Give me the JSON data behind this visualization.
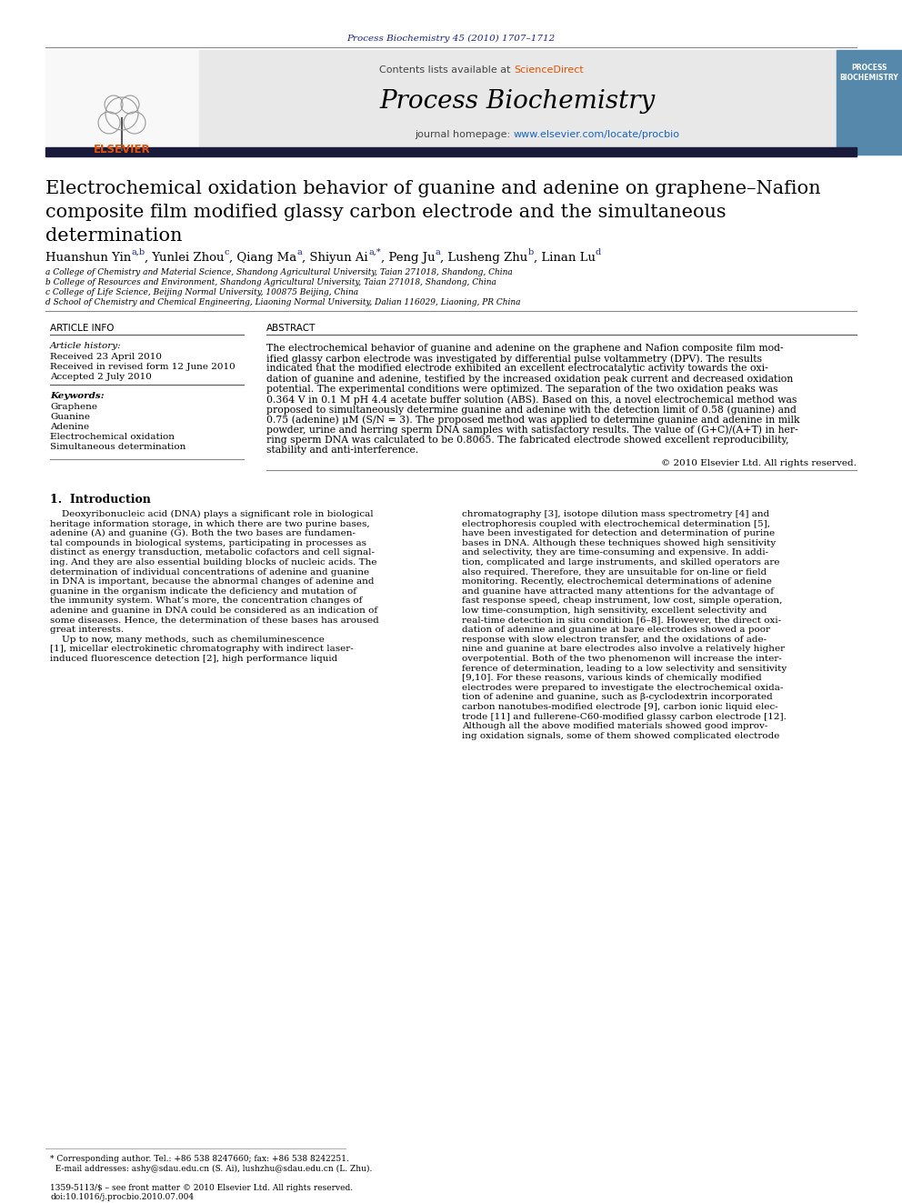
{
  "journal_ref": "Process Biochemistry 45 (2010) 1707–1712",
  "journal_name": "Process Biochemistry",
  "contents_text": "Contents lists available at ",
  "sciencedirect_text": "ScienceDirect",
  "homepage_text": "journal homepage: ",
  "homepage_url": "www.elsevier.com/locate/procbio",
  "title_line1": "Electrochemical oxidation behavior of guanine and adenine on graphene–Nafion",
  "title_line2": "composite film modified glassy carbon electrode and the simultaneous",
  "title_line3": "determination",
  "affil_a": "a College of Chemistry and Material Science, Shandong Agricultural University, Taian 271018, Shandong, China",
  "affil_b": "b College of Resources and Environment, Shandong Agricultural University, Taian 271018, Shandong, China",
  "affil_c": "c College of Life Science, Beijing Normal University, 100875 Beijing, China",
  "affil_d": "d School of Chemistry and Chemical Engineering, Liaoning Normal University, Dalian 116029, Liaoning, PR China",
  "article_info_title": "ARTICLE INFO",
  "article_history_title": "Article history:",
  "received": "Received 23 April 2010",
  "revised": "Received in revised form 12 June 2010",
  "accepted": "Accepted 2 July 2010",
  "keywords_title": "Keywords:",
  "keywords": [
    "Graphene",
    "Guanine",
    "Adenine",
    "Electrochemical oxidation",
    "Simultaneous determination"
  ],
  "abstract_title": "ABSTRACT",
  "abstract_text": "The electrochemical behavior of guanine and adenine on the graphene and Nafion composite film mod-\nified glassy carbon electrode was investigated by differential pulse voltammetry (DPV). The results\nindicated that the modified electrode exhibited an excellent electrocatalytic activity towards the oxi-\ndation of guanine and adenine, testified by the increased oxidation peak current and decreased oxidation\npotential. The experimental conditions were optimized. The separation of the two oxidation peaks was\n0.364 V in 0.1 M pH 4.4 acetate buffer solution (ABS). Based on this, a novel electrochemical method was\nproposed to simultaneously determine guanine and adenine with the detection limit of 0.58 (guanine) and\n0.75 (adenine) μM (S/N = 3). The proposed method was applied to determine guanine and adenine in milk\npowder, urine and herring sperm DNA samples with satisfactory results. The value of (G+C)/(A+T) in her-\nring sperm DNA was calculated to be 0.8065. The fabricated electrode showed excellent reproducibility,\nstability and anti-interference.",
  "copyright": "© 2010 Elsevier Ltd. All rights reserved.",
  "section1_title": "1.  Introduction",
  "intro_text_left": "    Deoxyribonucleic acid (DNA) plays a significant role in biological\nheritage information storage, in which there are two purine bases,\nadenine (A) and guanine (G). Both the two bases are fundamen-\ntal compounds in biological systems, participating in processes as\ndistinct as energy transduction, metabolic cofactors and cell signal-\ning. And they are also essential building blocks of nucleic acids. The\ndetermination of individual concentrations of adenine and guanine\nin DNA is important, because the abnormal changes of adenine and\nguanine in the organism indicate the deficiency and mutation of\nthe immunity system. What’s more, the concentration changes of\nadenine and guanine in DNA could be considered as an indication of\nsome diseases. Hence, the determination of these bases has aroused\ngreat interests.\n    Up to now, many methods, such as chemiluminescence\n[1], micellar electrokinetic chromatography with indirect laser-\ninduced fluorescence detection [2], high performance liquid",
  "intro_text_right": "chromatography [3], isotope dilution mass spectrometry [4] and\nelectrophoresis coupled with electrochemical determination [5],\nhave been investigated for detection and determination of purine\nbases in DNA. Although these techniques showed high sensitivity\nand selectivity, they are time-consuming and expensive. In addi-\ntion, complicated and large instruments, and skilled operators are\nalso required. Therefore, they are unsuitable for on-line or field\nmonitoring. Recently, electrochemical determinations of adenine\nand guanine have attracted many attentions for the advantage of\nfast response speed, cheap instrument, low cost, simple operation,\nlow time-consumption, high sensitivity, excellent selectivity and\nreal-time detection in situ condition [6–8]. However, the direct oxi-\ndation of adenine and guanine at bare electrodes showed a poor\nresponse with slow electron transfer, and the oxidations of ade-\nnine and guanine at bare electrodes also involve a relatively higher\noverpotential. Both of the two phenomenon will increase the inter-\nference of determination, leading to a low selectivity and sensitivity\n[9,10]. For these reasons, various kinds of chemically modified\nelectrodes were prepared to investigate the electrochemical oxida-\ntion of adenine and guanine, such as β-cyclodextrin incorporated\ncarbon nanotubes-modified electrode [9], carbon ionic liquid elec-\ntrode [11] and fullerene-C60-modified glassy carbon electrode [12].\nAlthough all the above modified materials showed good improv-\ning oxidation signals, some of them showed complicated electrode",
  "footer_line1": "* Corresponding author. Tel.: +86 538 8247660; fax: +86 538 8242251.",
  "footer_line2": "  E-mail addresses: ashy@sdau.edu.cn (S. Ai), lushzhu@sdau.edu.cn (L. Zhu).",
  "issn_line1": "1359-5113/$ – see front matter © 2010 Elsevier Ltd. All rights reserved.",
  "issn_line2": "doi:10.1016/j.procbio.2010.07.004",
  "bg_header": "#e8e8e8",
  "bg_white": "#ffffff",
  "color_blue_dark": "#1a237e",
  "color_orange": "#e65100",
  "color_url": "#1565c0",
  "color_black": "#000000",
  "color_darkgray": "#444444",
  "color_gray_text": "#555555",
  "header_bar_color": "#1a1a3a"
}
